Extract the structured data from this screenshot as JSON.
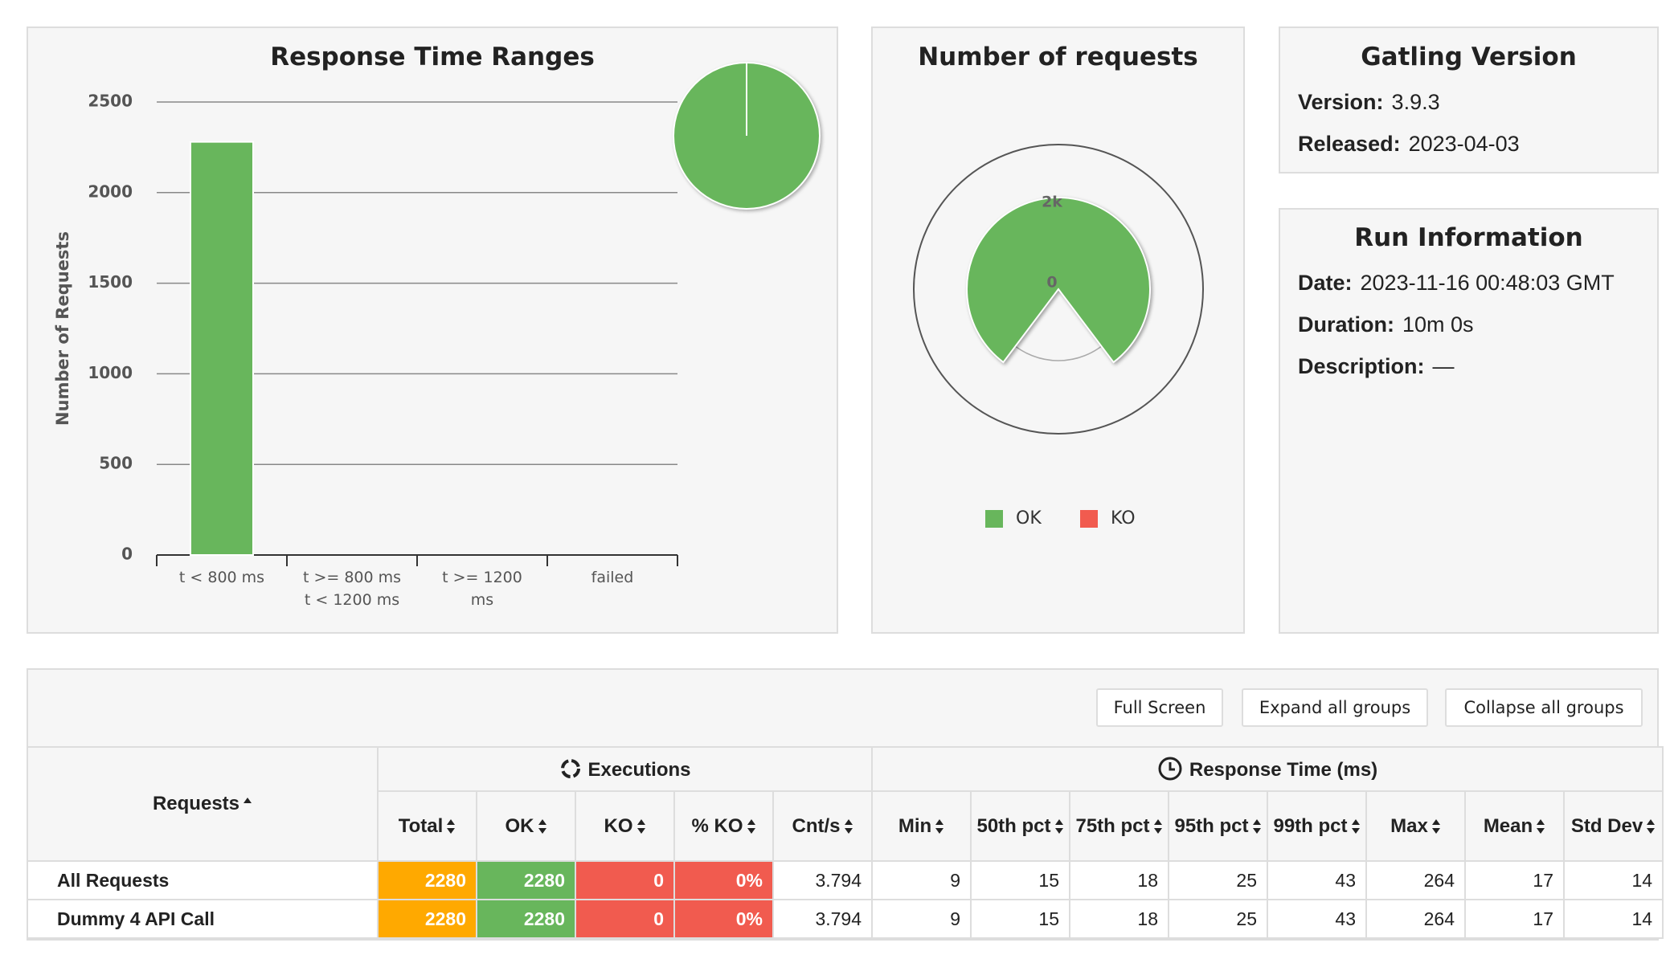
{
  "chart_data": [
    {
      "type": "bar",
      "title": "Response Time Ranges",
      "y_label": "Number of Requests",
      "categories": [
        "t < 800 ms",
        "t >= 800 ms t < 1200 ms",
        "t >= 1200 ms",
        "failed"
      ],
      "values": [
        2280,
        0,
        0,
        0
      ],
      "color": "#68b65c",
      "ylim": [
        0,
        2500
      ],
      "yticks": [
        0,
        500,
        1000,
        1500,
        2000,
        2500
      ],
      "grid": true,
      "inset_pie": true
    },
    {
      "type": "polar",
      "title": "Number of requests",
      "series": [
        {
          "name": "OK",
          "color": "#68b65c",
          "values": [
            2280
          ]
        },
        {
          "name": "KO",
          "color": "#f15b4f",
          "values": [
            0
          ]
        }
      ],
      "rlim": [
        0,
        2500
      ],
      "rticks": [
        0,
        {
          "value": 2000,
          "label": "2k"
        }
      ],
      "legend": "bottom"
    }
  ],
  "gatling": {
    "title": "Gatling Version",
    "rows": [
      [
        "Version:",
        "3.9.3"
      ],
      [
        "Released:",
        "2023-04-03"
      ]
    ]
  },
  "run": {
    "title": "Run Information",
    "rows": [
      [
        "Date:",
        "2023-11-16 00:48:03 GMT"
      ],
      [
        "Duration:",
        "10m 0s"
      ],
      [
        "Description:",
        "—"
      ]
    ]
  },
  "buttons": [
    "Full Screen",
    "Expand all groups",
    "Collapse all groups"
  ],
  "table": {
    "requests_header": "Requests",
    "groups": [
      "Executions",
      "Response Time (ms)"
    ],
    "columns": [
      "Total",
      "OK",
      "KO",
      "% KO",
      "Cnt/s",
      "Min",
      "50th pct",
      "75th pct",
      "95th pct",
      "99th pct",
      "Max",
      "Mean",
      "Std Dev"
    ],
    "rows": [
      [
        "All Requests",
        2280,
        2280,
        0,
        "0%",
        3.794,
        9,
        15,
        18,
        25,
        43,
        264,
        17,
        14
      ],
      [
        "Dummy 4 API Call",
        2280,
        2280,
        0,
        "0%",
        3.794,
        9,
        15,
        18,
        25,
        43,
        264,
        17,
        14
      ]
    ]
  }
}
